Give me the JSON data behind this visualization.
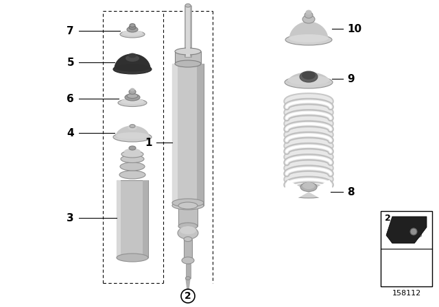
{
  "background_color": "#ffffff",
  "diagram_number": "158112",
  "light_gray": "#c8c8c8",
  "mid_gray": "#a0a0a0",
  "dark_gray": "#606060",
  "silver": "#b8b8b8",
  "light_silver": "#d0d0d0",
  "white": "#ffffff",
  "very_dark": "#2a2a2a",
  "label_fontsize": 11
}
